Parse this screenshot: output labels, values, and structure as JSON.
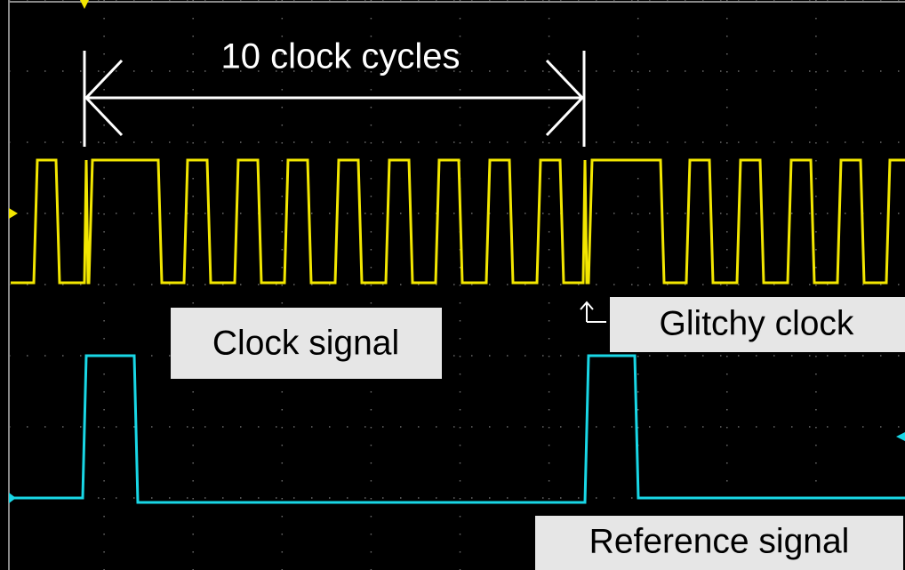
{
  "annotations": {
    "cycles": "10 clock cycles",
    "clock_label": "Clock signal",
    "glitch_label": "Glitchy clock",
    "reference_label": "Reference signal"
  }
}
